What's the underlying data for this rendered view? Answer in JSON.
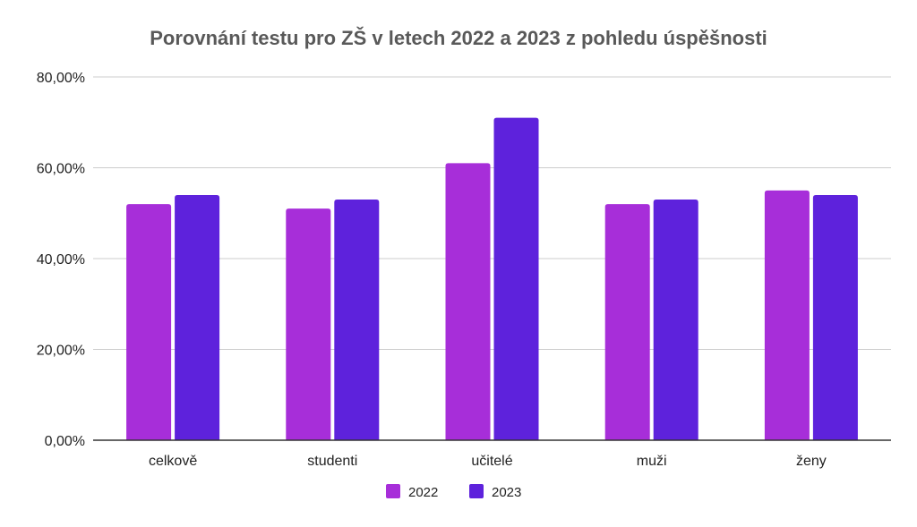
{
  "chart_data": {
    "type": "bar",
    "title": "Porovnání testu pro ZŠ v letech 2022 a 2023 z pohledu úspěšnosti",
    "xlabel": "",
    "ylabel": "",
    "categories": [
      "celkově",
      "studenti",
      "učitelé",
      "muži",
      "ženy"
    ],
    "series": [
      {
        "name": "2022",
        "color": "#a72ed9",
        "values": [
          52,
          51,
          61,
          52,
          55
        ]
      },
      {
        "name": "2023",
        "color": "#5e22dc",
        "values": [
          54,
          53,
          71,
          53,
          54
        ]
      }
    ],
    "ylim": [
      0,
      80
    ],
    "yticks": [
      "0,00%",
      "20,00%",
      "40,00%",
      "60,00%",
      "80,00%"
    ],
    "ytick_values": [
      0,
      20,
      40,
      60,
      80
    ],
    "grid": true,
    "legend_position": "bottom"
  }
}
